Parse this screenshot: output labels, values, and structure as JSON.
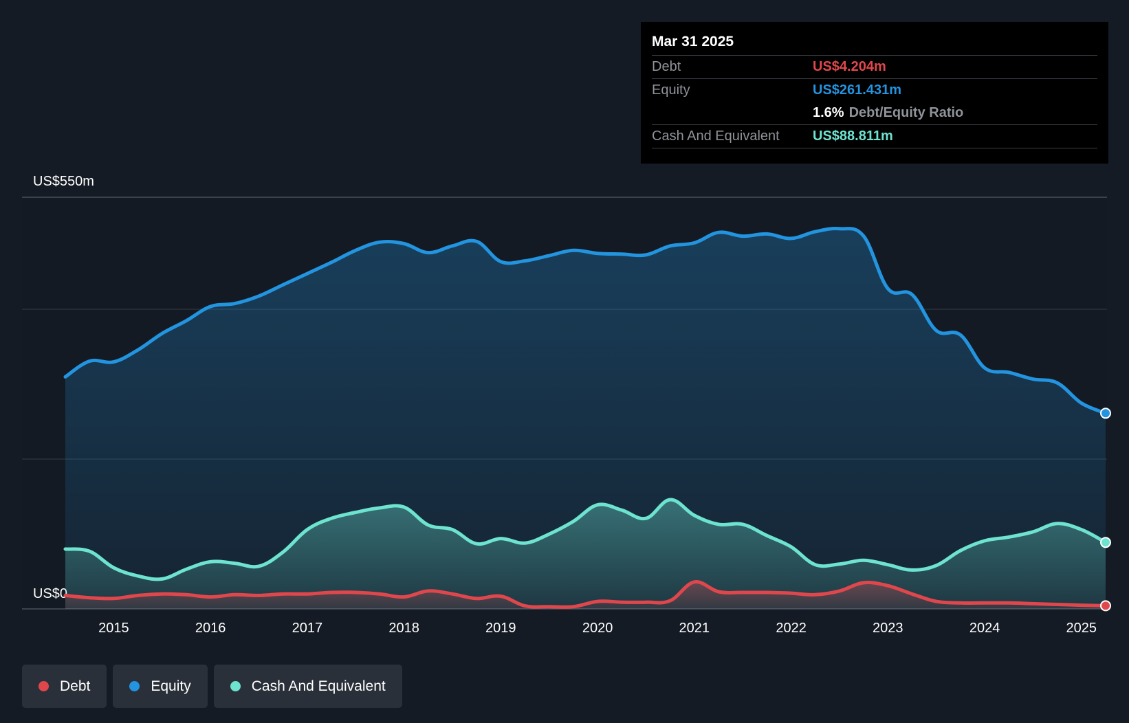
{
  "tooltip": {
    "date": "Mar 31 2025",
    "debt_label": "Debt",
    "debt_value": "US$4.204m",
    "equity_label": "Equity",
    "equity_value": "US$261.431m",
    "ratio_value": "1.6%",
    "ratio_label": "Debt/Equity Ratio",
    "cash_label": "Cash And Equivalent",
    "cash_value": "US$88.811m"
  },
  "legend": {
    "debt": "Debt",
    "equity": "Equity",
    "cash": "Cash And Equivalent"
  },
  "colors": {
    "debt": "#e0474c",
    "equity": "#2394df",
    "cash": "#6de3d0",
    "background": "#151b24"
  },
  "chart_data": {
    "type": "area",
    "title": "",
    "xlabel": "",
    "ylabel": "",
    "y_top_label": "US$550m",
    "y_bottom_label": "US$0",
    "ylim": [
      0,
      550
    ],
    "xlim": [
      2014.5,
      2025.25
    ],
    "x_ticks": [
      "2015",
      "2016",
      "2017",
      "2018",
      "2019",
      "2020",
      "2021",
      "2022",
      "2023",
      "2024",
      "2025"
    ],
    "series": [
      {
        "name": "Equity",
        "key": "equity",
        "points": [
          [
            2014.5,
            310
          ],
          [
            2014.75,
            331
          ],
          [
            2015.0,
            330
          ],
          [
            2015.25,
            346
          ],
          [
            2015.5,
            368
          ],
          [
            2015.75,
            385
          ],
          [
            2016.0,
            404
          ],
          [
            2016.25,
            408
          ],
          [
            2016.5,
            418
          ],
          [
            2016.75,
            433
          ],
          [
            2017.0,
            448
          ],
          [
            2017.25,
            463
          ],
          [
            2017.5,
            479
          ],
          [
            2017.75,
            490
          ],
          [
            2018.0,
            488
          ],
          [
            2018.25,
            476
          ],
          [
            2018.5,
            485
          ],
          [
            2018.75,
            491
          ],
          [
            2019.0,
            464
          ],
          [
            2019.25,
            465
          ],
          [
            2019.5,
            472
          ],
          [
            2019.75,
            479
          ],
          [
            2020.0,
            475
          ],
          [
            2020.25,
            474
          ],
          [
            2020.5,
            473
          ],
          [
            2020.75,
            485
          ],
          [
            2021.0,
            489
          ],
          [
            2021.25,
            503
          ],
          [
            2021.5,
            498
          ],
          [
            2021.75,
            501
          ],
          [
            2022.0,
            495
          ],
          [
            2022.25,
            504
          ],
          [
            2022.5,
            508
          ],
          [
            2022.75,
            498
          ],
          [
            2023.0,
            428
          ],
          [
            2023.25,
            420
          ],
          [
            2023.5,
            372
          ],
          [
            2023.75,
            366
          ],
          [
            2024.0,
            322
          ],
          [
            2024.25,
            316
          ],
          [
            2024.5,
            307
          ],
          [
            2024.75,
            302
          ],
          [
            2025.0,
            275
          ],
          [
            2025.25,
            261.431
          ]
        ]
      },
      {
        "name": "Cash And Equivalent",
        "key": "cash",
        "points": [
          [
            2014.5,
            80
          ],
          [
            2014.75,
            77
          ],
          [
            2015.0,
            55
          ],
          [
            2015.25,
            44
          ],
          [
            2015.5,
            40
          ],
          [
            2015.75,
            53
          ],
          [
            2016.0,
            63
          ],
          [
            2016.25,
            61
          ],
          [
            2016.5,
            57
          ],
          [
            2016.75,
            76
          ],
          [
            2017.0,
            106
          ],
          [
            2017.25,
            121
          ],
          [
            2017.5,
            129
          ],
          [
            2017.75,
            135
          ],
          [
            2018.0,
            136
          ],
          [
            2018.25,
            112
          ],
          [
            2018.5,
            106
          ],
          [
            2018.75,
            87
          ],
          [
            2019.0,
            94
          ],
          [
            2019.25,
            88
          ],
          [
            2019.5,
            100
          ],
          [
            2019.75,
            117
          ],
          [
            2020.0,
            139
          ],
          [
            2020.25,
            132
          ],
          [
            2020.5,
            121
          ],
          [
            2020.75,
            146
          ],
          [
            2021.0,
            125
          ],
          [
            2021.25,
            113
          ],
          [
            2021.5,
            113
          ],
          [
            2021.75,
            98
          ],
          [
            2022.0,
            83
          ],
          [
            2022.25,
            59
          ],
          [
            2022.5,
            60
          ],
          [
            2022.75,
            65
          ],
          [
            2023.0,
            59
          ],
          [
            2023.25,
            52
          ],
          [
            2023.5,
            58
          ],
          [
            2023.75,
            78
          ],
          [
            2024.0,
            91
          ],
          [
            2024.25,
            96
          ],
          [
            2024.5,
            103
          ],
          [
            2024.75,
            114
          ],
          [
            2025.0,
            106
          ],
          [
            2025.25,
            88.811
          ]
        ]
      },
      {
        "name": "Debt",
        "key": "debt",
        "points": [
          [
            2014.5,
            18
          ],
          [
            2014.75,
            15
          ],
          [
            2015.0,
            14
          ],
          [
            2015.25,
            18
          ],
          [
            2015.5,
            20
          ],
          [
            2015.75,
            19
          ],
          [
            2016.0,
            16
          ],
          [
            2016.25,
            19
          ],
          [
            2016.5,
            18
          ],
          [
            2016.75,
            20
          ],
          [
            2017.0,
            20
          ],
          [
            2017.25,
            22
          ],
          [
            2017.5,
            22
          ],
          [
            2017.75,
            20
          ],
          [
            2018.0,
            16
          ],
          [
            2018.25,
            24
          ],
          [
            2018.5,
            20
          ],
          [
            2018.75,
            14
          ],
          [
            2019.0,
            17
          ],
          [
            2019.25,
            4
          ],
          [
            2019.5,
            3
          ],
          [
            2019.75,
            3
          ],
          [
            2020.0,
            10
          ],
          [
            2020.25,
            9
          ],
          [
            2020.5,
            9
          ],
          [
            2020.75,
            11
          ],
          [
            2021.0,
            36
          ],
          [
            2021.25,
            23
          ],
          [
            2021.5,
            22
          ],
          [
            2021.75,
            22
          ],
          [
            2022.0,
            21
          ],
          [
            2022.25,
            19
          ],
          [
            2022.5,
            24
          ],
          [
            2022.75,
            35
          ],
          [
            2023.0,
            31
          ],
          [
            2023.25,
            20
          ],
          [
            2023.5,
            10
          ],
          [
            2023.75,
            8
          ],
          [
            2024.0,
            8
          ],
          [
            2024.25,
            8
          ],
          [
            2024.5,
            7
          ],
          [
            2024.75,
            6
          ],
          [
            2025.0,
            5
          ],
          [
            2025.25,
            4.204
          ]
        ]
      }
    ],
    "legend_position": "bottom-left",
    "grid": true
  }
}
